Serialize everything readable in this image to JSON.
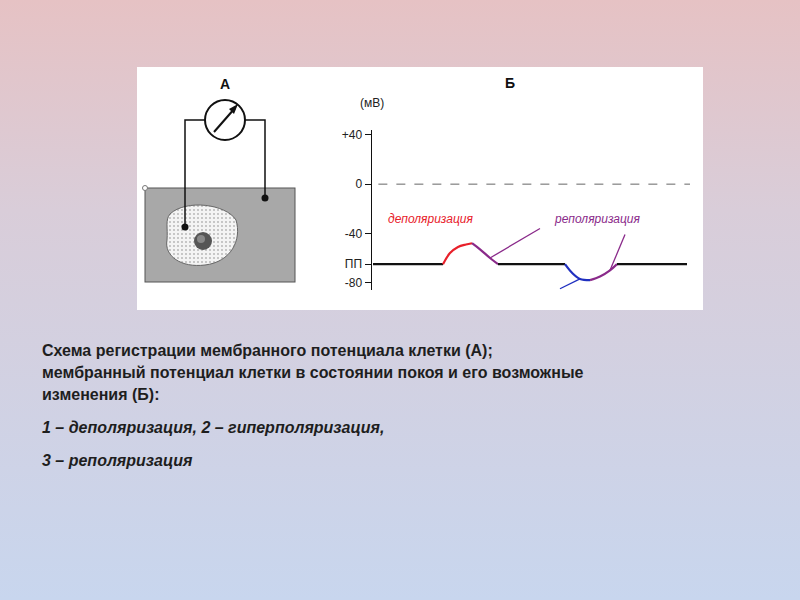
{
  "panel_a": {
    "label": "А"
  },
  "chart_data": {
    "type": "line",
    "title": "Б",
    "y_label": "(мВ)",
    "ylim": [
      -86,
      44
    ],
    "yticks": [
      {
        "value": 40,
        "label": "+40"
      },
      0,
      -40,
      {
        "value": -65,
        "label": "ПП"
      },
      -80
    ],
    "dashed_lines": [
      0
    ],
    "tick_labels": "y",
    "legend": false,
    "series": [
      {
        "color": "#111111",
        "x": [
          1,
          71
        ],
        "values": [
          -65,
          -65
        ]
      },
      {
        "name": "деполяризация",
        "color": "#e8202a",
        "x": [
          71,
          78,
          86,
          94,
          100
        ],
        "values": [
          -65,
          -56,
          -51,
          -49,
          -48
        ]
      },
      {
        "name": "реполяризация",
        "color": "#8a2a8a",
        "x": [
          100,
          108,
          118,
          126
        ],
        "values": [
          -48,
          -53,
          -60,
          -65
        ]
      },
      {
        "color": "#111111",
        "x": [
          126,
          193
        ],
        "values": [
          -65,
          -65
        ]
      },
      {
        "name": "гиперполяризация",
        "color": "#2030c0",
        "x": [
          193,
          200,
          208,
          218
        ],
        "values": [
          -65,
          -72,
          -77,
          -78
        ]
      },
      {
        "name": "реполяризация",
        "color": "#8a2a8a",
        "x": [
          218,
          228,
          238,
          245
        ],
        "values": [
          -78,
          -75,
          -70,
          -65
        ]
      },
      {
        "color": "#111111",
        "x": [
          245,
          315
        ],
        "values": [
          -65,
          -65
        ]
      }
    ]
  },
  "caption": {
    "lines": [
      "Схема регистрации мембранного потенциала клетки (А);",
      "мембранный потенциал клетки в состоянии покоя и его возможные",
      "изменения (Б):"
    ],
    "items": [
      "1 – деполяризация, 2 – гиперполяризация,",
      "3 – реполяризация"
    ]
  }
}
